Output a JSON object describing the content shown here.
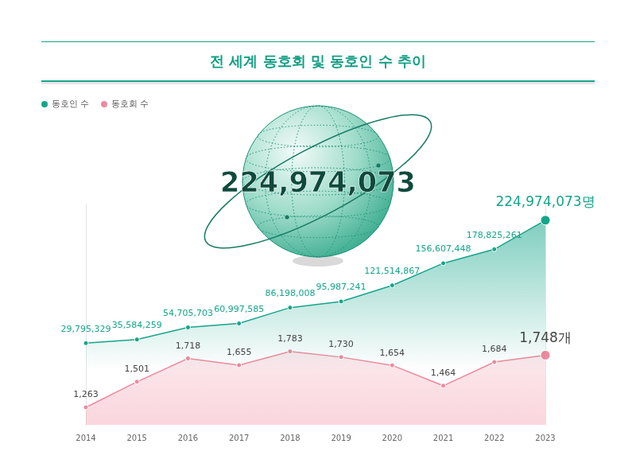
{
  "chart_data": {
    "type": "line",
    "title": "전 세계 동호회 및 동호인 수 추이",
    "annotation": "224,974,073",
    "categories": [
      "2014",
      "2015",
      "2016",
      "2017",
      "2018",
      "2019",
      "2020",
      "2021",
      "2022",
      "2023"
    ],
    "series": [
      {
        "name": "동호인 수",
        "color": "#15a58a",
        "values": [
          29795329,
          35584259,
          54705703,
          60997585,
          86198008,
          95987241,
          121514867,
          156607448,
          178825261,
          224974073
        ],
        "value_labels": [
          "29,795,329",
          "35,584,259",
          "54,705,703",
          "60,997,585",
          "86,198,008",
          "95,987,241",
          "121,514,867",
          "156,607,448",
          "178,825,261",
          "224,974,073명"
        ]
      },
      {
        "name": "동호회 수",
        "color": "#f0899d",
        "axis": "y2",
        "values": [
          1263,
          1501,
          1718,
          1655,
          1783,
          1730,
          1654,
          1464,
          1684,
          1748
        ],
        "value_labels": [
          "1,263",
          "1,501",
          "1,718",
          "1,655",
          "1,783",
          "1,730",
          "1,654",
          "1,464",
          "1,684",
          "1,748개"
        ]
      }
    ],
    "ylim": [
      -100000000,
      250000000
    ],
    "y2lim": [
      1100,
      3150
    ],
    "legend": "top-left",
    "data_labels": true,
    "tick_labels": "x",
    "grid": false,
    "marker": "circle"
  }
}
